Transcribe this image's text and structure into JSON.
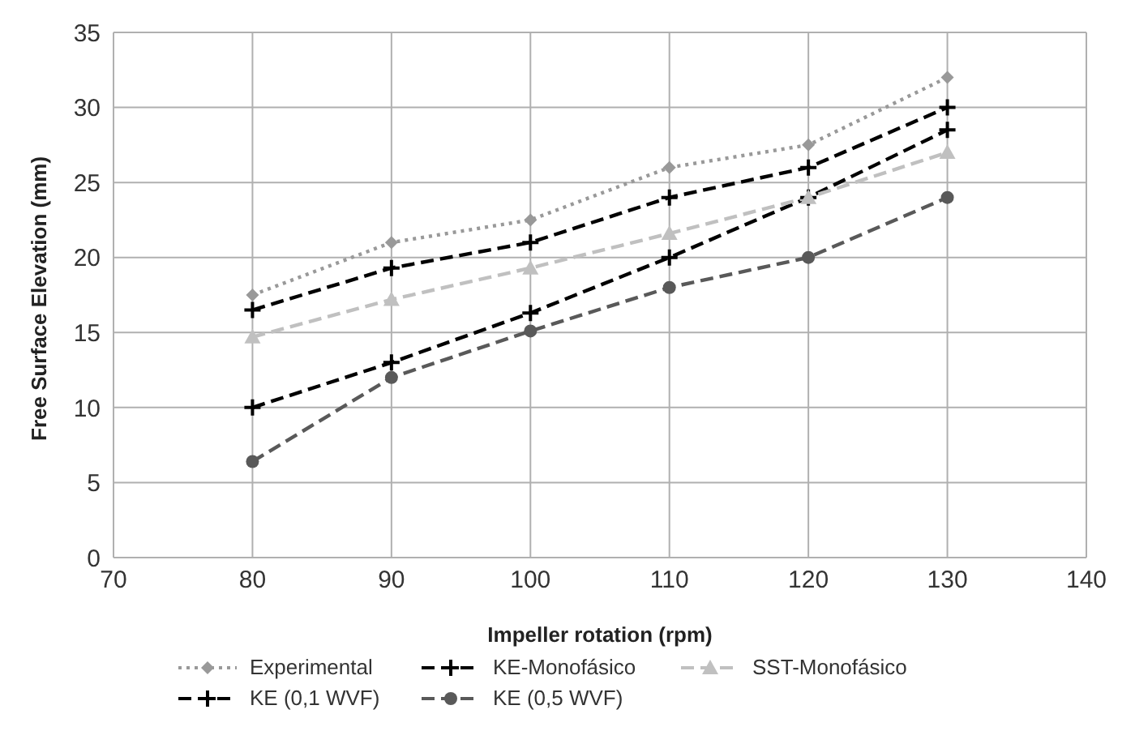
{
  "chart_data": {
    "type": "line",
    "xlabel": "Impeller rotation (rpm)",
    "ylabel": "Free Surface Elevation (mm)",
    "x": [
      80,
      90,
      100,
      110,
      120,
      130
    ],
    "xlim": [
      70,
      140
    ],
    "xticks": [
      70,
      80,
      90,
      100,
      110,
      120,
      130,
      140
    ],
    "ylim": [
      0,
      35
    ],
    "yticks": [
      0,
      5,
      10,
      15,
      20,
      25,
      30,
      35
    ],
    "grid": true,
    "legend": "bottom",
    "series": [
      {
        "name": "Experimental",
        "color": "#999999",
        "marker": "diamond",
        "line_style": "dotted",
        "values": [
          17.5,
          21,
          22.5,
          26,
          27.5,
          32
        ]
      },
      {
        "name": "KE-Monofásico",
        "color": "#000000",
        "marker": "cross",
        "line_style": "dashed",
        "values": [
          10,
          13,
          16.3,
          20,
          24,
          28.5
        ]
      },
      {
        "name": "SST-Monofásico",
        "color": "#c0c0c0",
        "marker": "triangle",
        "line_style": "dashed",
        "values": [
          14.7,
          17.2,
          19.3,
          21.6,
          24,
          27
        ]
      },
      {
        "name": "KE (0,1 WVF)",
        "color": "#000000",
        "marker": "cross",
        "line_style": "dashed",
        "values": [
          16.5,
          19.3,
          21,
          24,
          26,
          30
        ]
      },
      {
        "name": "KE (0,5 WVF)",
        "color": "#595959",
        "marker": "circle",
        "line_style": "dashed",
        "values": [
          6.4,
          12,
          15.1,
          18,
          20,
          24
        ]
      }
    ]
  }
}
